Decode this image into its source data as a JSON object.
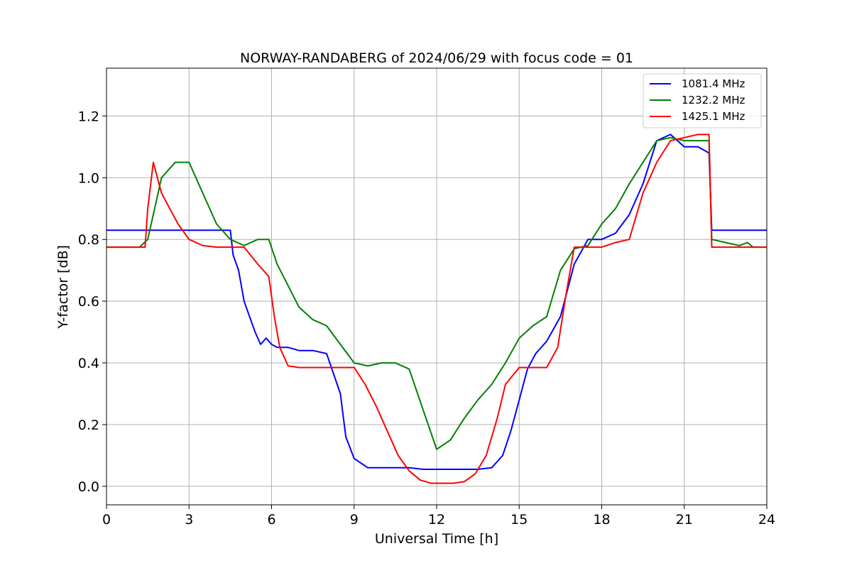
{
  "chart_data": {
    "type": "line",
    "title": "NORWAY-RANDABERG of 2024/06/29 with focus code = 01",
    "xlabel": "Universal Time [h]",
    "ylabel": "Y-factor [dB]",
    "xlim": [
      0,
      24
    ],
    "ylim": [
      -0.06,
      1.355
    ],
    "xticks": [
      0,
      3,
      6,
      9,
      12,
      15,
      18,
      21,
      24
    ],
    "yticks": [
      0.0,
      0.2,
      0.4,
      0.6,
      0.8,
      1.0,
      1.2
    ],
    "xtick_labels": [
      "0",
      "3",
      "6",
      "9",
      "12",
      "15",
      "18",
      "21",
      "24"
    ],
    "ytick_labels": [
      "0.0",
      "0.2",
      "0.4",
      "0.6",
      "0.8",
      "1.0",
      "1.2"
    ],
    "grid": true,
    "legend": "top-right",
    "series": [
      {
        "name": "1081.4 MHz",
        "color": "#0000ff",
        "x": [
          0,
          1.4,
          1.5,
          3.0,
          4.5,
          4.6,
          4.8,
          5.0,
          5.2,
          5.4,
          5.6,
          5.8,
          6.0,
          6.2,
          6.6,
          7.0,
          7.5,
          8.0,
          8.5,
          8.7,
          9.0,
          9.5,
          10.0,
          10.5,
          11.0,
          11.5,
          12.0,
          12.5,
          13.0,
          13.5,
          14.0,
          14.4,
          14.7,
          15.0,
          15.3,
          15.6,
          16.0,
          16.5,
          17.0,
          17.5,
          18.0,
          18.5,
          19.0,
          19.5,
          20.0,
          20.5,
          21.0,
          21.5,
          21.9,
          22.0,
          23.0,
          24.0
        ],
        "y": [
          0.83,
          0.83,
          0.83,
          0.83,
          0.83,
          0.75,
          0.7,
          0.6,
          0.55,
          0.5,
          0.46,
          0.48,
          0.46,
          0.45,
          0.45,
          0.44,
          0.44,
          0.43,
          0.3,
          0.16,
          0.09,
          0.06,
          0.06,
          0.06,
          0.06,
          0.055,
          0.055,
          0.055,
          0.055,
          0.055,
          0.06,
          0.1,
          0.18,
          0.28,
          0.38,
          0.43,
          0.47,
          0.55,
          0.72,
          0.8,
          0.8,
          0.82,
          0.88,
          0.98,
          1.12,
          1.14,
          1.1,
          1.1,
          1.08,
          0.83,
          0.83,
          0.83
        ]
      },
      {
        "name": "1232.2 MHz",
        "color": "#008000",
        "x": [
          0,
          1.2,
          1.5,
          2.0,
          2.5,
          3.0,
          3.5,
          4.0,
          4.5,
          5.0,
          5.5,
          5.9,
          6.2,
          6.6,
          7.0,
          7.5,
          8.0,
          8.5,
          9.0,
          9.5,
          10.0,
          10.5,
          11.0,
          11.5,
          12.0,
          12.5,
          13.0,
          13.5,
          14.0,
          14.5,
          15.0,
          15.5,
          16.0,
          16.5,
          17.0,
          17.5,
          18.0,
          18.5,
          19.0,
          19.5,
          20.0,
          20.5,
          21.0,
          21.5,
          21.9,
          22.0,
          22.5,
          23.0,
          23.3,
          23.5,
          24.0
        ],
        "y": [
          0.775,
          0.775,
          0.8,
          1.0,
          1.05,
          1.05,
          0.95,
          0.85,
          0.8,
          0.78,
          0.8,
          0.8,
          0.72,
          0.65,
          0.58,
          0.54,
          0.52,
          0.46,
          0.4,
          0.39,
          0.4,
          0.4,
          0.38,
          0.25,
          0.12,
          0.15,
          0.22,
          0.28,
          0.33,
          0.4,
          0.48,
          0.52,
          0.55,
          0.7,
          0.77,
          0.78,
          0.85,
          0.9,
          0.98,
          1.05,
          1.12,
          1.13,
          1.12,
          1.12,
          1.12,
          0.8,
          0.79,
          0.78,
          0.79,
          0.775,
          0.775
        ]
      },
      {
        "name": "1425.1 MHz",
        "color": "#ff0000",
        "x": [
          0,
          1.4,
          1.5,
          1.7,
          2.0,
          2.3,
          2.6,
          3.0,
          3.5,
          4.0,
          4.5,
          5.0,
          5.5,
          5.9,
          6.1,
          6.3,
          6.6,
          7.0,
          8.0,
          9.0,
          9.4,
          9.8,
          10.2,
          10.6,
          11.0,
          11.4,
          11.8,
          12.2,
          12.6,
          13.0,
          13.4,
          13.8,
          14.2,
          14.5,
          15.0,
          16.0,
          16.4,
          16.7,
          17.0,
          18.0,
          18.5,
          19.0,
          19.5,
          20.0,
          20.5,
          21.0,
          21.5,
          21.9,
          22.0,
          22.5,
          24.0
        ],
        "y": [
          0.775,
          0.775,
          0.9,
          1.05,
          0.95,
          0.9,
          0.85,
          0.8,
          0.78,
          0.775,
          0.775,
          0.775,
          0.72,
          0.68,
          0.55,
          0.45,
          0.39,
          0.385,
          0.385,
          0.385,
          0.33,
          0.26,
          0.18,
          0.1,
          0.05,
          0.02,
          0.01,
          0.01,
          0.01,
          0.015,
          0.04,
          0.1,
          0.22,
          0.33,
          0.385,
          0.385,
          0.45,
          0.62,
          0.775,
          0.775,
          0.79,
          0.8,
          0.95,
          1.05,
          1.12,
          1.13,
          1.14,
          1.14,
          0.775,
          0.775,
          0.775
        ]
      }
    ]
  }
}
